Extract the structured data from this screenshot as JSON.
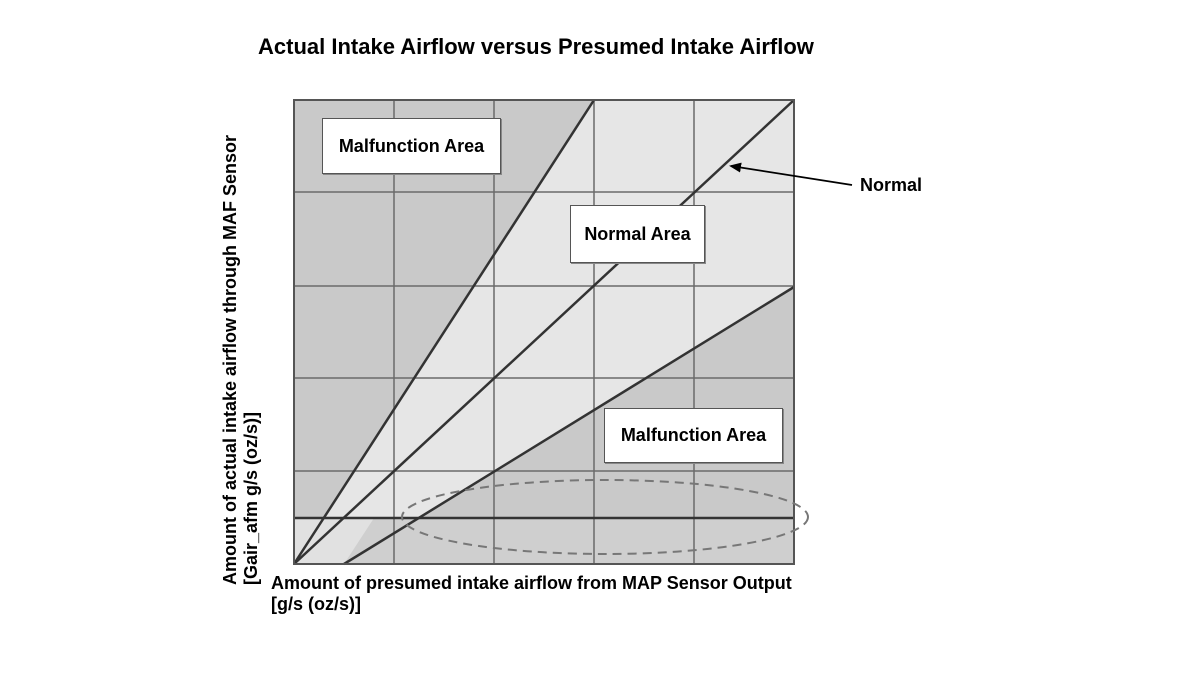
{
  "diagram": {
    "title": "Actual Intake Airflow versus Presumed Intake Airflow",
    "labels": {
      "malfunction_upper": "Malfunction Area",
      "normal_area": "Normal Area",
      "malfunction_lower": "Malfunction Area",
      "normal_line": "Normal"
    },
    "xlabel": {
      "line1": "Amount of presumed intake airflow from MAP Sensor Output",
      "line2": "[g/s (oz/s)]"
    },
    "ylabel": {
      "line1": "Amount of actual intake airflow through MAF Sensor",
      "line2": "[Gair_afm g/s (oz/s)]"
    },
    "colors": {
      "malfunction_fill": "#c9c9c9",
      "normal_fill": "#e6e6e6",
      "grid_line": "#6a6a6a",
      "boundary_line": "#333333",
      "ellipse_stroke": "#777777"
    }
  }
}
